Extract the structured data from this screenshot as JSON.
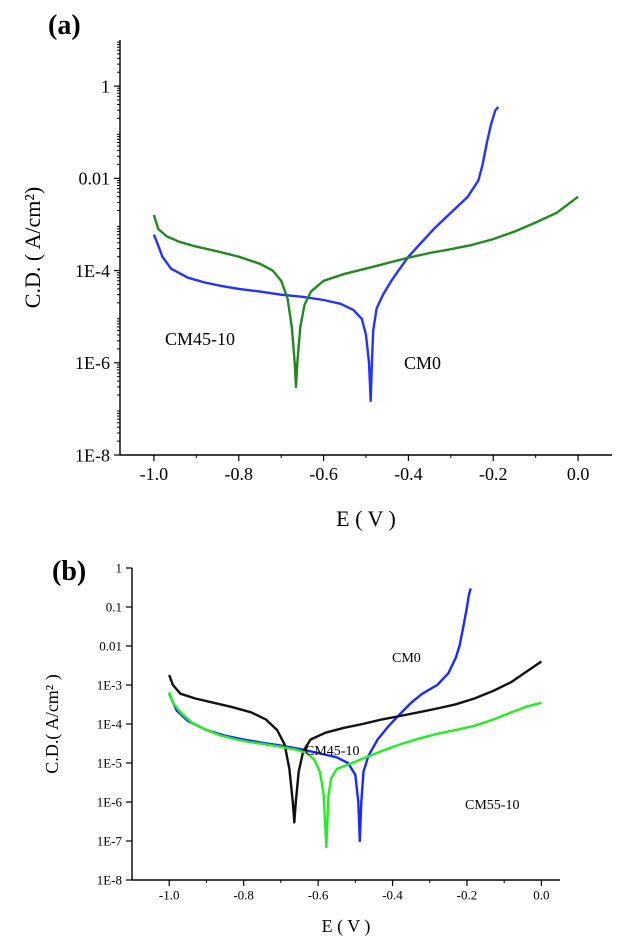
{
  "chart_data": [
    {
      "panel_label": "(a)",
      "type": "line",
      "xlabel": "E ( V )",
      "ylabel": "C.D. ( A/cm²)",
      "y_scale": "log",
      "xlim": [
        -1.08,
        0.08
      ],
      "ylim": [
        1e-08,
        10
      ],
      "x_ticks": [
        -1.0,
        -0.8,
        -0.6,
        -0.4,
        -0.2,
        0.0
      ],
      "x_tick_labels": [
        "-1.0",
        "-0.8",
        "-0.6",
        "-0.4",
        "-0.2",
        "0.0"
      ],
      "y_ticks": [
        1e-08,
        1e-06,
        0.0001,
        0.01,
        1
      ],
      "y_tick_labels": [
        "1E-8",
        "1E-6",
        "1E-4",
        "0.01",
        "1"
      ],
      "series": [
        {
          "name": "CM0",
          "color": "#2233ff",
          "points": [
            [
              -1.0,
              0.0006
            ],
            [
              -0.99,
              0.00035
            ],
            [
              -0.98,
              0.0002
            ],
            [
              -0.96,
              0.00011
            ],
            [
              -0.92,
              7e-05
            ],
            [
              -0.88,
              5.5e-05
            ],
            [
              -0.84,
              4.6e-05
            ],
            [
              -0.8,
              4e-05
            ],
            [
              -0.75,
              3.5e-05
            ],
            [
              -0.7,
              3e-05
            ],
            [
              -0.65,
              2.7e-05
            ],
            [
              -0.6,
              2.3e-05
            ],
            [
              -0.56,
              1.9e-05
            ],
            [
              -0.53,
              1.4e-05
            ],
            [
              -0.51,
              9e-06
            ],
            [
              -0.5,
              4e-06
            ],
            [
              -0.493,
              1e-06
            ],
            [
              -0.489,
              1.5e-07
            ],
            [
              -0.486,
              1e-06
            ],
            [
              -0.483,
              5e-06
            ],
            [
              -0.475,
              1.5e-05
            ],
            [
              -0.46,
              3e-05
            ],
            [
              -0.44,
              6e-05
            ],
            [
              -0.42,
              0.00011
            ],
            [
              -0.4,
              0.0002
            ],
            [
              -0.37,
              0.0004
            ],
            [
              -0.34,
              0.0008
            ],
            [
              -0.3,
              0.0018
            ],
            [
              -0.26,
              0.004
            ],
            [
              -0.235,
              0.009
            ],
            [
              -0.225,
              0.02
            ],
            [
              -0.215,
              0.06
            ],
            [
              -0.205,
              0.15
            ],
            [
              -0.195,
              0.3
            ],
            [
              -0.188,
              0.35
            ]
          ]
        },
        {
          "name": "CM45-10",
          "color": "#228822",
          "points": [
            [
              -1.0,
              0.0016
            ],
            [
              -0.99,
              0.0008
            ],
            [
              -0.97,
              0.00055
            ],
            [
              -0.94,
              0.00042
            ],
            [
              -0.9,
              0.00033
            ],
            [
              -0.85,
              0.00026
            ],
            [
              -0.8,
              0.0002
            ],
            [
              -0.75,
              0.00014
            ],
            [
              -0.72,
              0.0001
            ],
            [
              -0.7,
              6e-05
            ],
            [
              -0.685,
              2.5e-05
            ],
            [
              -0.675,
              6e-06
            ],
            [
              -0.668,
              1e-06
            ],
            [
              -0.665,
              3e-07
            ],
            [
              -0.662,
              1e-06
            ],
            [
              -0.655,
              6e-06
            ],
            [
              -0.645,
              1.8e-05
            ],
            [
              -0.63,
              3.5e-05
            ],
            [
              -0.6,
              6e-05
            ],
            [
              -0.55,
              8.5e-05
            ],
            [
              -0.5,
              0.00011
            ],
            [
              -0.45,
              0.000145
            ],
            [
              -0.4,
              0.00019
            ],
            [
              -0.35,
              0.00024
            ],
            [
              -0.3,
              0.00029
            ],
            [
              -0.25,
              0.00036
            ],
            [
              -0.2,
              0.00048
            ],
            [
              -0.15,
              0.0007
            ],
            [
              -0.1,
              0.0011
            ],
            [
              -0.05,
              0.0018
            ],
            [
              0.0,
              0.004
            ]
          ]
        }
      ],
      "annotations": [
        "CM45-10",
        "CM0"
      ]
    },
    {
      "panel_label": "(b)",
      "type": "line",
      "xlabel": "E ( V )",
      "ylabel": "C.D.( A/cm² )",
      "y_scale": "log",
      "xlim": [
        -1.1,
        0.05
      ],
      "ylim": [
        1e-08,
        1
      ],
      "x_ticks": [
        -1.0,
        -0.8,
        -0.6,
        -0.4,
        -0.2,
        0.0
      ],
      "x_tick_labels": [
        "-1.0",
        "-0.8",
        "-0.6",
        "-0.4",
        "-0.2",
        "0.0"
      ],
      "y_ticks": [
        1e-08,
        1e-07,
        1e-06,
        1e-05,
        0.0001,
        0.001,
        0.01,
        0.1,
        1
      ],
      "y_tick_labels": [
        "1E-8",
        "1E-7",
        "1E-6",
        "1E-5",
        "1E-4",
        "1E-3",
        "0.01",
        "0.1",
        "1"
      ],
      "series": [
        {
          "name": "CM0",
          "color": "#1a2aff",
          "points": [
            [
              -1.0,
              0.0006
            ],
            [
              -0.98,
              0.00022
            ],
            [
              -0.95,
              0.00012
            ],
            [
              -0.9,
              7e-05
            ],
            [
              -0.85,
              5e-05
            ],
            [
              -0.8,
              4e-05
            ],
            [
              -0.75,
              3.3e-05
            ],
            [
              -0.7,
              2.8e-05
            ],
            [
              -0.65,
              2.3e-05
            ],
            [
              -0.6,
              1.8e-05
            ],
            [
              -0.55,
              1.4e-05
            ],
            [
              -0.52,
              1e-05
            ],
            [
              -0.5,
              5e-06
            ],
            [
              -0.492,
              1e-06
            ],
            [
              -0.488,
              1e-07
            ],
            [
              -0.484,
              1e-06
            ],
            [
              -0.478,
              6e-06
            ],
            [
              -0.465,
              1.5e-05
            ],
            [
              -0.44,
              4e-05
            ],
            [
              -0.41,
              9e-05
            ],
            [
              -0.38,
              0.00018
            ],
            [
              -0.35,
              0.00035
            ],
            [
              -0.32,
              0.0006
            ],
            [
              -0.28,
              0.001
            ],
            [
              -0.25,
              0.002
            ],
            [
              -0.23,
              0.005
            ],
            [
              -0.22,
              0.01
            ],
            [
              -0.21,
              0.03
            ],
            [
              -0.2,
              0.1
            ],
            [
              -0.195,
              0.2
            ],
            [
              -0.19,
              0.3
            ]
          ]
        },
        {
          "name": "CM45-10",
          "color": "#111111",
          "points": [
            [
              -1.0,
              0.0018
            ],
            [
              -0.99,
              0.001
            ],
            [
              -0.97,
              0.0006
            ],
            [
              -0.93,
              0.00045
            ],
            [
              -0.88,
              0.00035
            ],
            [
              -0.83,
              0.00027
            ],
            [
              -0.78,
              0.0002
            ],
            [
              -0.74,
              0.00013
            ],
            [
              -0.71,
              7e-05
            ],
            [
              -0.69,
              3e-05
            ],
            [
              -0.677,
              7e-06
            ],
            [
              -0.668,
              1e-06
            ],
            [
              -0.664,
              3e-07
            ],
            [
              -0.66,
              1e-06
            ],
            [
              -0.652,
              6e-06
            ],
            [
              -0.64,
              2e-05
            ],
            [
              -0.62,
              4e-05
            ],
            [
              -0.58,
              6e-05
            ],
            [
              -0.53,
              8e-05
            ],
            [
              -0.48,
              0.0001
            ],
            [
              -0.43,
              0.00013
            ],
            [
              -0.38,
              0.00016
            ],
            [
              -0.33,
              0.0002
            ],
            [
              -0.28,
              0.00025
            ],
            [
              -0.23,
              0.00032
            ],
            [
              -0.18,
              0.00045
            ],
            [
              -0.13,
              0.0007
            ],
            [
              -0.08,
              0.0012
            ],
            [
              -0.04,
              0.0022
            ],
            [
              0.0,
              0.004
            ]
          ]
        },
        {
          "name": "CM55-10",
          "color": "#22ee22",
          "points": [
            [
              -1.0,
              0.00065
            ],
            [
              -0.99,
              0.00035
            ],
            [
              -0.97,
              0.0002
            ],
            [
              -0.94,
              0.00011
            ],
            [
              -0.9,
              7e-05
            ],
            [
              -0.86,
              5e-05
            ],
            [
              -0.82,
              4e-05
            ],
            [
              -0.78,
              3.4e-05
            ],
            [
              -0.74,
              3e-05
            ],
            [
              -0.7,
              2.6e-05
            ],
            [
              -0.66,
              2.2e-05
            ],
            [
              -0.63,
              1.8e-05
            ],
            [
              -0.61,
              1.2e-05
            ],
            [
              -0.595,
              6e-06
            ],
            [
              -0.585,
              1.5e-06
            ],
            [
              -0.578,
              7e-08
            ],
            [
              -0.572,
              1.5e-06
            ],
            [
              -0.565,
              4e-06
            ],
            [
              -0.55,
              7e-06
            ],
            [
              -0.52,
              9e-06
            ],
            [
              -0.48,
              1.3e-05
            ],
            [
              -0.43,
              2e-05
            ],
            [
              -0.38,
              3e-05
            ],
            [
              -0.33,
              4.2e-05
            ],
            [
              -0.28,
              5.6e-05
            ],
            [
              -0.23,
              7e-05
            ],
            [
              -0.18,
              9e-05
            ],
            [
              -0.13,
              0.00013
            ],
            [
              -0.08,
              0.0002
            ],
            [
              -0.04,
              0.00028
            ],
            [
              0.0,
              0.00035
            ]
          ]
        }
      ],
      "annotations": [
        "CM0",
        "CM45-10",
        "CM55-10"
      ]
    }
  ]
}
